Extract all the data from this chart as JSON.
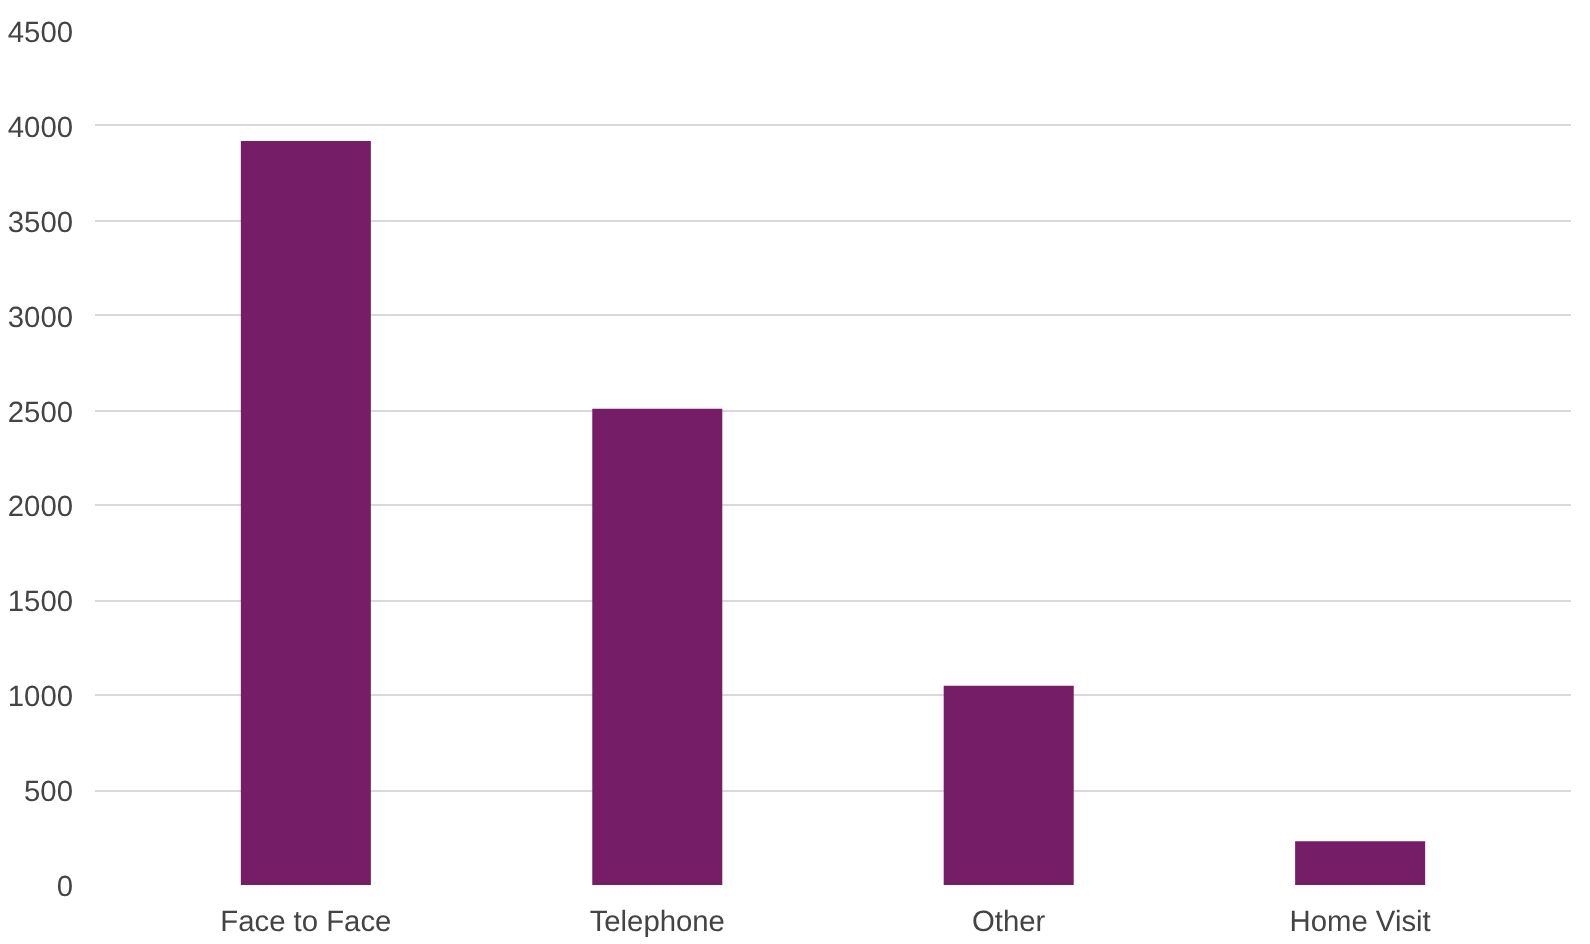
{
  "chart_data": {
    "type": "bar",
    "categories": [
      "Face to Face",
      "Telephone",
      "Other",
      "Home Visit"
    ],
    "values": [
      3920,
      2510,
      1050,
      230
    ],
    "color": "#761d68",
    "ylim": [
      0,
      4500
    ],
    "yticks": [
      0,
      500,
      1000,
      1500,
      2000,
      2500,
      3000,
      3500,
      4000,
      4500
    ],
    "grid": "y"
  }
}
